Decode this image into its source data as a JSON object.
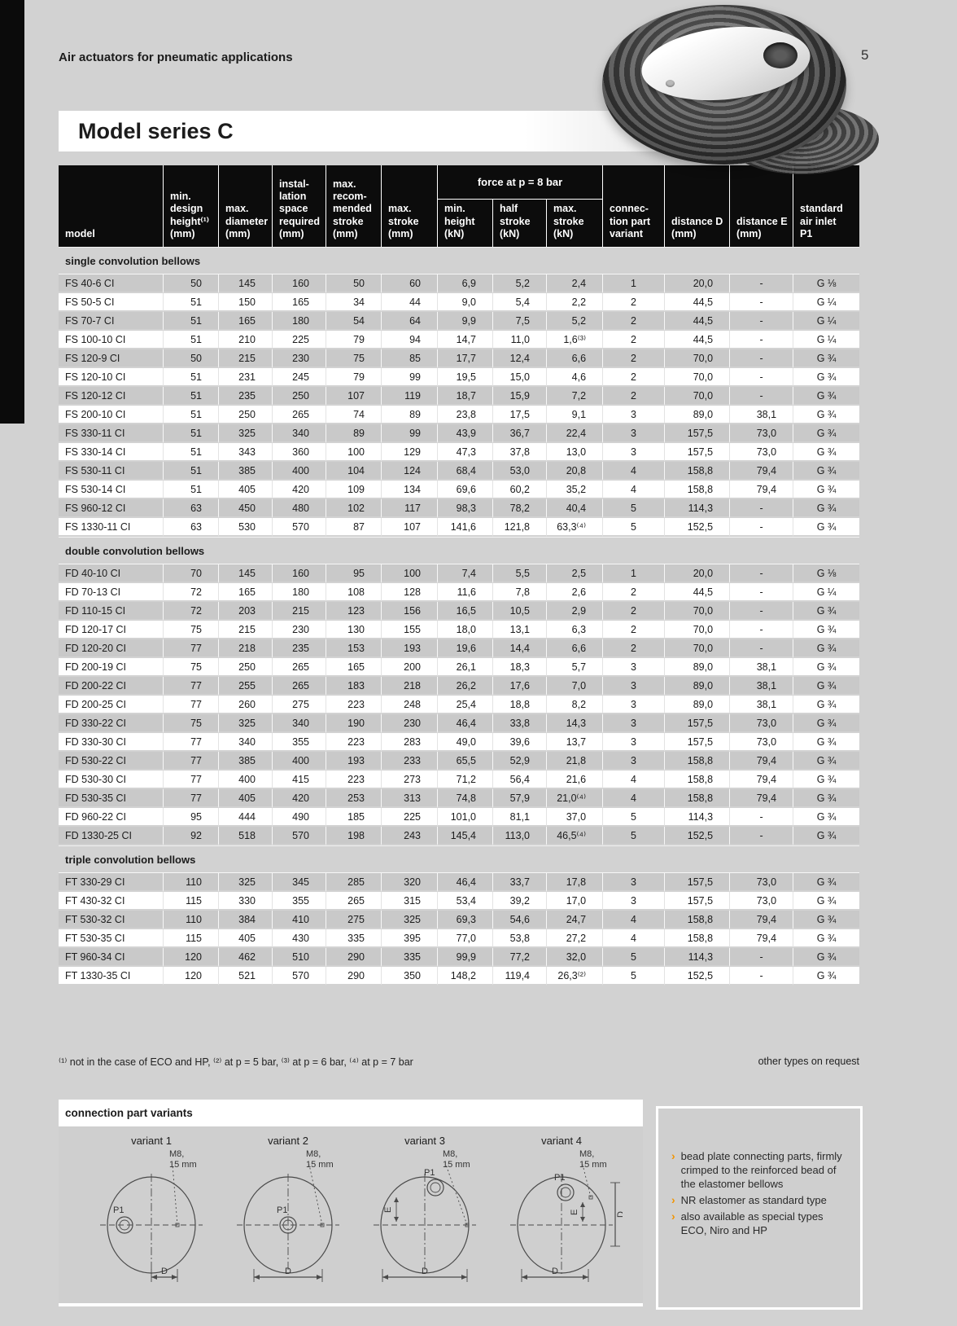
{
  "page": {
    "header": "Air actuators for pneumatic applications",
    "page_number": "5",
    "title": "Model series C",
    "footnote": "⁽¹⁾ not in the case of ECO and HP, ⁽²⁾ at p = 5 bar, ⁽³⁾ at p = 6 bar, ⁽⁴⁾ at p = 7 bar",
    "other_types": "other types on request"
  },
  "colors": {
    "accent_orange": "#f29400",
    "header_bg": "#0c0c0c",
    "page_bg": "#d2d2d2",
    "row_shade": "#c9c9c9"
  },
  "table": {
    "col_headers": {
      "model": "model",
      "min_design_height": "min.\ndesign\nheight⁽¹⁾\n(mm)",
      "max_diameter": "max.\ndiameter\n(mm)",
      "installation_space": "instal-\nlation\nspace\nrequired\n(mm)",
      "max_recommended_stroke": "max.\nrecom-\nmended\nstroke\n(mm)",
      "max_stroke": "max.\nstroke\n(mm)",
      "force_group": "force at p = 8 bar",
      "force_min_height": "min.\nheight\n(kN)",
      "force_half_stroke": "half\nstroke\n(kN)",
      "force_max_stroke": "max.\nstroke\n(kN)",
      "connection_variant": "connec-\ntion part\nvariant",
      "distance_d": "distance D\n(mm)",
      "distance_e": "distance E\n(mm)",
      "air_inlet": "standard\nair inlet\nP1"
    },
    "sections": [
      {
        "label": "single convolution bellows",
        "rows": [
          [
            "FS 40-6 CI",
            "50",
            "145",
            "160",
            "50",
            "60",
            "6,9",
            "5,2",
            "2,4",
            "1",
            "20,0",
            "-",
            "G ⅛"
          ],
          [
            "FS 50-5 CI",
            "51",
            "150",
            "165",
            "34",
            "44",
            "9,0",
            "5,4",
            "2,2",
            "2",
            "44,5",
            "-",
            "G ¼"
          ],
          [
            "FS 70-7 CI",
            "51",
            "165",
            "180",
            "54",
            "64",
            "9,9",
            "7,5",
            "5,2",
            "2",
            "44,5",
            "-",
            "G ¼"
          ],
          [
            "FS 100-10 CI",
            "51",
            "210",
            "225",
            "79",
            "94",
            "14,7",
            "11,0",
            "1,6⁽³⁾",
            "2",
            "44,5",
            "-",
            "G ¼"
          ],
          [
            "FS 120-9 CI",
            "50",
            "215",
            "230",
            "75",
            "85",
            "17,7",
            "12,4",
            "6,6",
            "2",
            "70,0",
            "-",
            "G ¾"
          ],
          [
            "FS 120-10 CI",
            "51",
            "231",
            "245",
            "79",
            "99",
            "19,5",
            "15,0",
            "4,6",
            "2",
            "70,0",
            "-",
            "G ¾"
          ],
          [
            "FS 120-12 CI",
            "51",
            "235",
            "250",
            "107",
            "119",
            "18,7",
            "15,9",
            "7,2",
            "2",
            "70,0",
            "-",
            "G ¾"
          ],
          [
            "FS 200-10 CI",
            "51",
            "250",
            "265",
            "74",
            "89",
            "23,8",
            "17,5",
            "9,1",
            "3",
            "89,0",
            "38,1",
            "G ¾"
          ],
          [
            "FS 330-11 CI",
            "51",
            "325",
            "340",
            "89",
            "99",
            "43,9",
            "36,7",
            "22,4",
            "3",
            "157,5",
            "73,0",
            "G ¾"
          ],
          [
            "FS 330-14 CI",
            "51",
            "343",
            "360",
            "100",
            "129",
            "47,3",
            "37,8",
            "13,0",
            "3",
            "157,5",
            "73,0",
            "G ¾"
          ],
          [
            "FS 530-11 CI",
            "51",
            "385",
            "400",
            "104",
            "124",
            "68,4",
            "53,0",
            "20,8",
            "4",
            "158,8",
            "79,4",
            "G ¾"
          ],
          [
            "FS 530-14 CI",
            "51",
            "405",
            "420",
            "109",
            "134",
            "69,6",
            "60,2",
            "35,2",
            "4",
            "158,8",
            "79,4",
            "G ¾"
          ],
          [
            "FS 960-12 CI",
            "63",
            "450",
            "480",
            "102",
            "117",
            "98,3",
            "78,2",
            "40,4",
            "5",
            "114,3",
            "-",
            "G ¾"
          ],
          [
            "FS 1330-11 CI",
            "63",
            "530",
            "570",
            "87",
            "107",
            "141,6",
            "121,8",
            "63,3⁽⁴⁾",
            "5",
            "152,5",
            "-",
            "G ¾"
          ]
        ]
      },
      {
        "label": "double convolution bellows",
        "rows": [
          [
            "FD 40-10 CI",
            "70",
            "145",
            "160",
            "95",
            "100",
            "7,4",
            "5,5",
            "2,5",
            "1",
            "20,0",
            "-",
            "G ⅛"
          ],
          [
            "FD 70-13 CI",
            "72",
            "165",
            "180",
            "108",
            "128",
            "11,6",
            "7,8",
            "2,6",
            "2",
            "44,5",
            "-",
            "G ¼"
          ],
          [
            "FD 110-15 CI",
            "72",
            "203",
            "215",
            "123",
            "156",
            "16,5",
            "10,5",
            "2,9",
            "2",
            "70,0",
            "-",
            "G ¾"
          ],
          [
            "FD 120-17 CI",
            "75",
            "215",
            "230",
            "130",
            "155",
            "18,0",
            "13,1",
            "6,3",
            "2",
            "70,0",
            "-",
            "G ¾"
          ],
          [
            "FD 120-20 CI",
            "77",
            "218",
            "235",
            "153",
            "193",
            "19,6",
            "14,4",
            "6,6",
            "2",
            "70,0",
            "-",
            "G ¾"
          ],
          [
            "FD 200-19 CI",
            "75",
            "250",
            "265",
            "165",
            "200",
            "26,1",
            "18,3",
            "5,7",
            "3",
            "89,0",
            "38,1",
            "G ¾"
          ],
          [
            "FD 200-22 CI",
            "77",
            "255",
            "265",
            "183",
            "218",
            "26,2",
            "17,6",
            "7,0",
            "3",
            "89,0",
            "38,1",
            "G ¾"
          ],
          [
            "FD 200-25 CI",
            "77",
            "260",
            "275",
            "223",
            "248",
            "25,4",
            "18,8",
            "8,2",
            "3",
            "89,0",
            "38,1",
            "G ¾"
          ],
          [
            "FD 330-22 CI",
            "75",
            "325",
            "340",
            "190",
            "230",
            "46,4",
            "33,8",
            "14,3",
            "3",
            "157,5",
            "73,0",
            "G ¾"
          ],
          [
            "FD 330-30 CI",
            "77",
            "340",
            "355",
            "223",
            "283",
            "49,0",
            "39,6",
            "13,7",
            "3",
            "157,5",
            "73,0",
            "G ¾"
          ],
          [
            "FD 530-22 CI",
            "77",
            "385",
            "400",
            "193",
            "233",
            "65,5",
            "52,9",
            "21,8",
            "3",
            "158,8",
            "79,4",
            "G ¾"
          ],
          [
            "FD 530-30 CI",
            "77",
            "400",
            "415",
            "223",
            "273",
            "71,2",
            "56,4",
            "21,6",
            "4",
            "158,8",
            "79,4",
            "G ¾"
          ],
          [
            "FD 530-35 CI",
            "77",
            "405",
            "420",
            "253",
            "313",
            "74,8",
            "57,9",
            "21,0⁽⁴⁾",
            "4",
            "158,8",
            "79,4",
            "G ¾"
          ],
          [
            "FD 960-22 CI",
            "95",
            "444",
            "490",
            "185",
            "225",
            "101,0",
            "81,1",
            "37,0",
            "5",
            "114,3",
            "-",
            "G ¾"
          ],
          [
            "FD 1330-25 CI",
            "92",
            "518",
            "570",
            "198",
            "243",
            "145,4",
            "113,0",
            "46,5⁽⁴⁾",
            "5",
            "152,5",
            "-",
            "G ¾"
          ]
        ]
      },
      {
        "label": "triple convolution bellows",
        "rows": [
          [
            "FT 330-29 CI",
            "110",
            "325",
            "345",
            "285",
            "320",
            "46,4",
            "33,7",
            "17,8",
            "3",
            "157,5",
            "73,0",
            "G ¾"
          ],
          [
            "FT 430-32 CI",
            "115",
            "330",
            "355",
            "265",
            "315",
            "53,4",
            "39,2",
            "17,0",
            "3",
            "157,5",
            "73,0",
            "G ¾"
          ],
          [
            "FT 530-32 CI",
            "110",
            "384",
            "410",
            "275",
            "325",
            "69,3",
            "54,6",
            "24,7",
            "4",
            "158,8",
            "79,4",
            "G ¾"
          ],
          [
            "FT 530-35 CI",
            "115",
            "405",
            "430",
            "335",
            "395",
            "77,0",
            "53,8",
            "27,2",
            "4",
            "158,8",
            "79,4",
            "G ¾"
          ],
          [
            "FT 960-34 CI",
            "120",
            "462",
            "510",
            "290",
            "335",
            "99,9",
            "77,2",
            "32,0",
            "5",
            "114,3",
            "-",
            "G ¾"
          ],
          [
            "FT 1330-35 CI",
            "120",
            "521",
            "570",
            "290",
            "350",
            "148,2",
            "119,4",
            "26,3⁽²⁾",
            "5",
            "152,5",
            "-",
            "G ¾"
          ]
        ]
      }
    ]
  },
  "variants_box": {
    "title": "connection part variants",
    "variants": [
      {
        "label": "variant 1",
        "bolt": "M8,",
        "bolt_sub": "15 mm",
        "port": "P1",
        "dim_d": "D",
        "dim_e": null
      },
      {
        "label": "variant 2",
        "bolt": "M8,",
        "bolt_sub": "15 mm",
        "port": "P1",
        "dim_d": "D",
        "dim_e": null
      },
      {
        "label": "variant 3",
        "bolt": "M8,",
        "bolt_sub": "15 mm",
        "port": "P1",
        "dim_d": "D",
        "dim_e": "E"
      },
      {
        "label": "variant 4",
        "bolt": "M8,",
        "bolt_sub": "15 mm",
        "port": "P1",
        "dim_d": "D",
        "dim_e": "E"
      }
    ]
  },
  "info_box": {
    "bullets": [
      "bead plate connecting parts, firmly crimped to the reinforced bead of the elastomer bellows",
      "NR elastomer as standard type",
      "also available as special types ECO, Niro and HP"
    ]
  }
}
